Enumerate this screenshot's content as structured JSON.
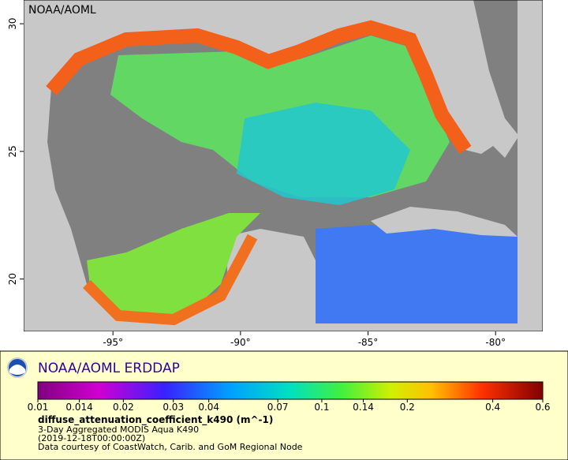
{
  "map": {
    "watermark": "NOAA/AOML",
    "xlim": [
      -98.5,
      -78.15
    ],
    "ylim": [
      17.95,
      30.93
    ],
    "xticks": [
      {
        "value": -95,
        "label": "-95°"
      },
      {
        "value": -90,
        "label": "-90°"
      },
      {
        "value": -85,
        "label": "-85°"
      },
      {
        "value": -80,
        "label": "-80°"
      }
    ],
    "yticks": [
      20,
      25,
      30
    ]
  },
  "legend": {
    "title": "NOAA/AOML ERDDAP",
    "colorbar": {
      "lim": [
        0.01,
        0.6
      ],
      "log": true,
      "ticks": [
        0.01,
        0.014,
        0.02,
        0.03,
        0.04,
        0.07,
        0.1,
        0.14,
        0.2,
        0.4,
        0.6
      ]
    },
    "variable": "diffuse_attenuation_coefficient_k490 (m^-1)",
    "lines": [
      "3-Day Aggregated MODIS Aqua K490",
      "(2019-12-18T00:00:00Z)",
      "Data courtesy of CoastWatch, Carib. and GoM Regional Node"
    ]
  }
}
